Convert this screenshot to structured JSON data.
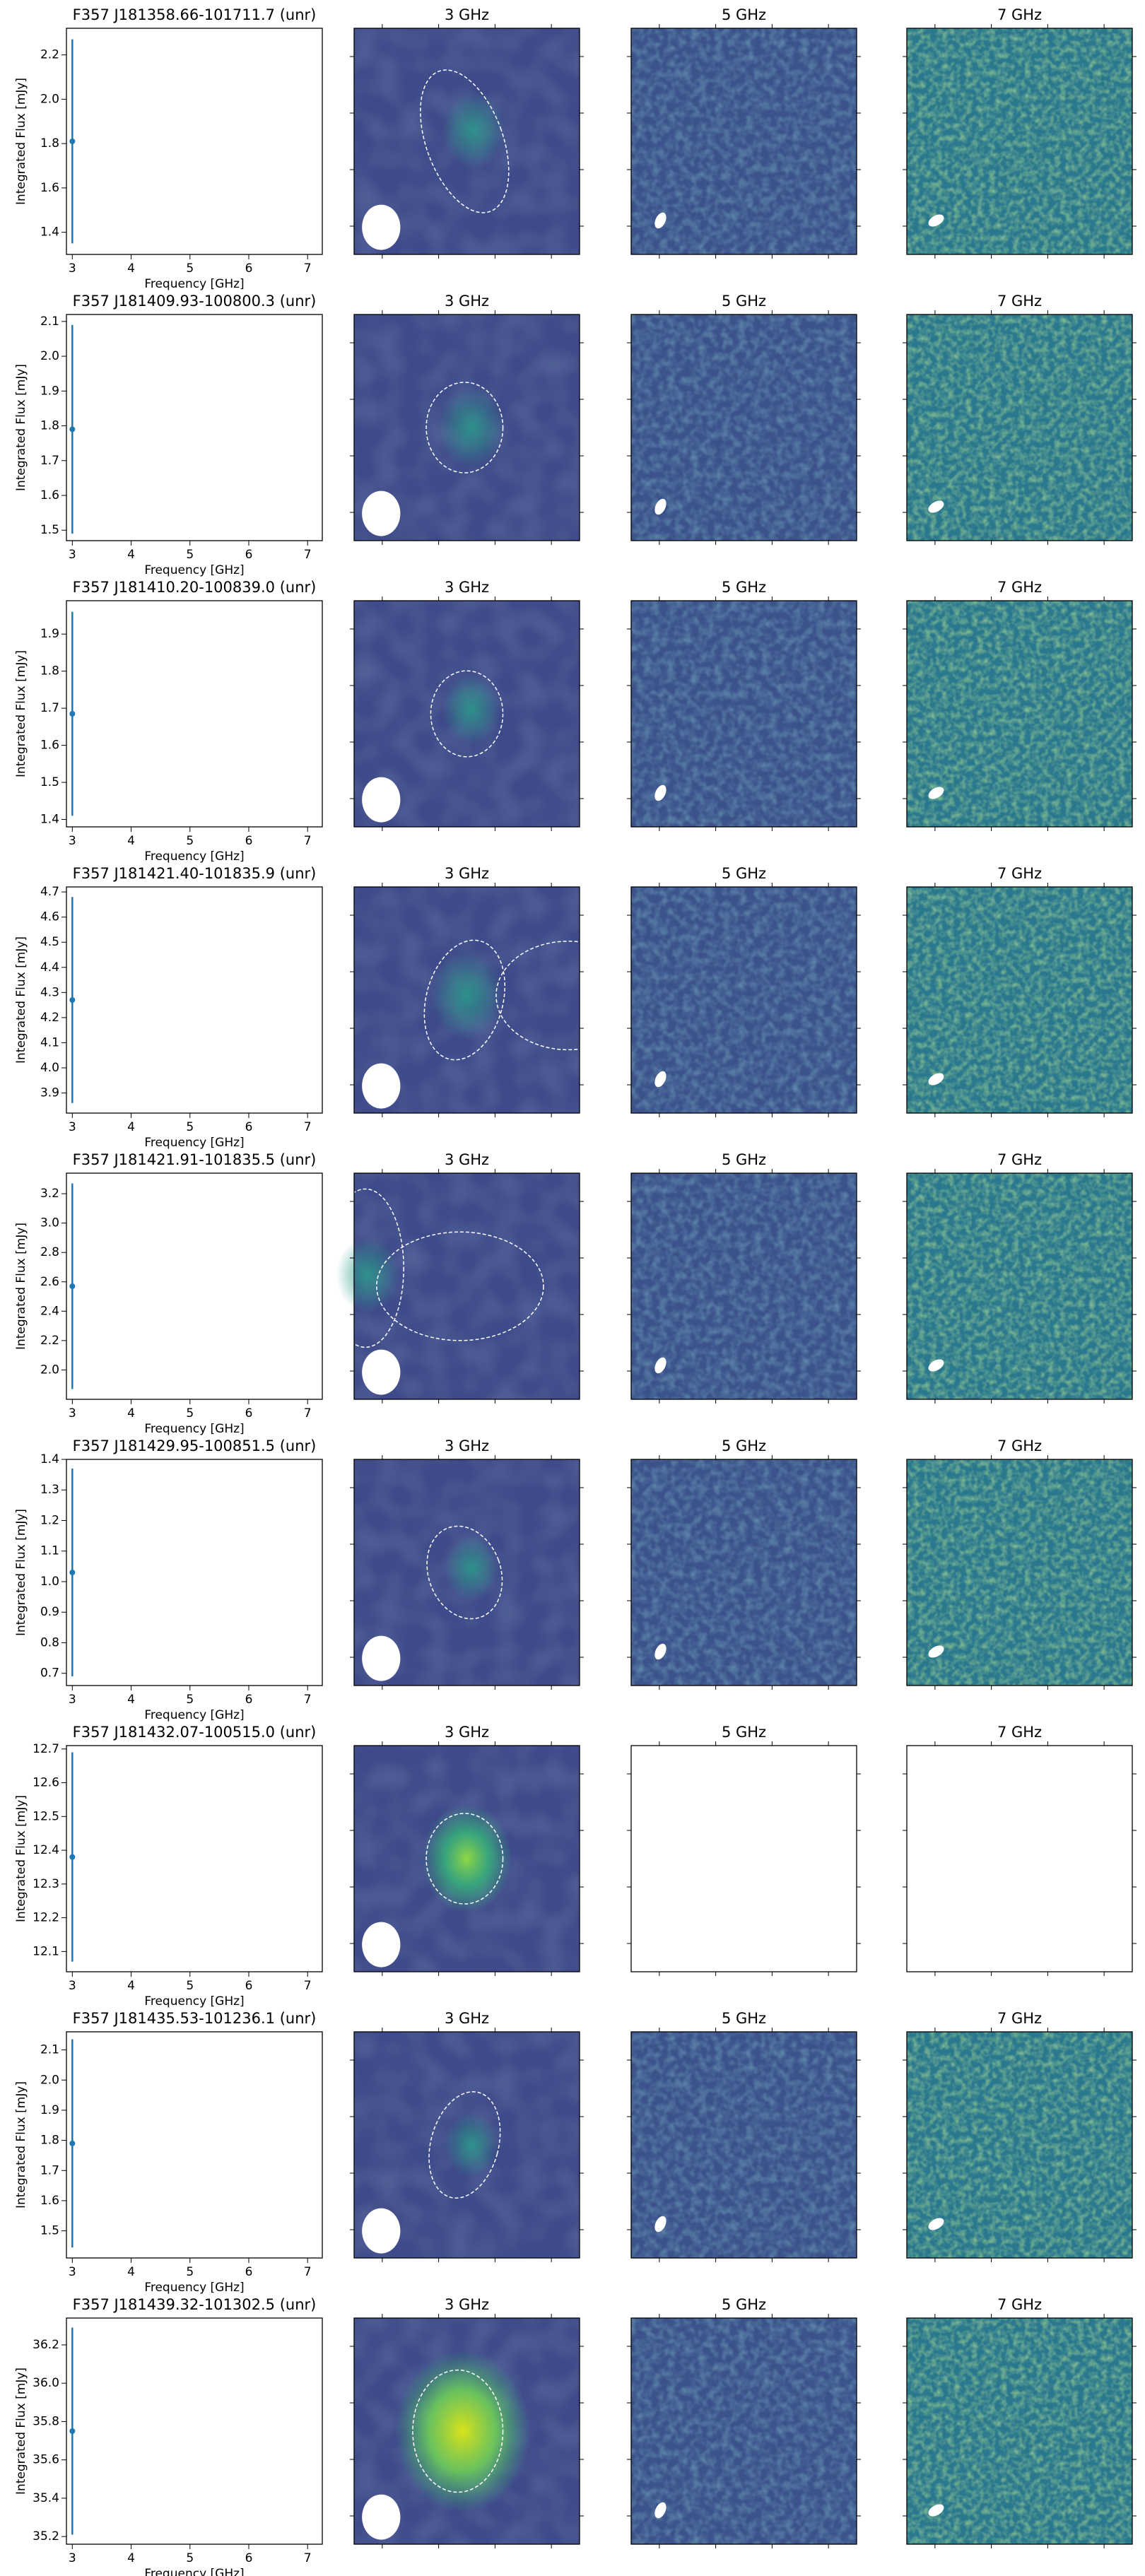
{
  "chart_data": [
    {
      "type": "errorbar",
      "title": "F357 J181358.66-101711.7 (unr)",
      "x": [
        3
      ],
      "values": [
        1.81
      ],
      "errors": [
        0.46
      ],
      "color": "#1f77b4",
      "xlim": [
        2.9,
        7.25
      ],
      "xticks": [
        3,
        4,
        5,
        6,
        7
      ],
      "ylim": [
        1.3,
        2.32
      ],
      "yticks": [
        1.4,
        1.6,
        1.8,
        {
          "value": 2,
          "label": "2.0"
        },
        2.2
      ],
      "xlabel": "Frequency [GHz]",
      "ylabel": "Integrated Flux [mJy]",
      "image_titles": [
        "3 GHz",
        "5 GHz",
        "7 GHz"
      ]
    },
    {
      "type": "errorbar",
      "title": "F357 J181409.93-100800.3 (unr)",
      "x": [
        3
      ],
      "values": [
        1.79
      ],
      "errors": [
        0.3
      ],
      "color": "#1f77b4",
      "xlim": [
        2.9,
        7.25
      ],
      "xticks": [
        3,
        4,
        5,
        6,
        7
      ],
      "ylim": [
        1.47,
        2.12
      ],
      "yticks": [
        1.5,
        1.6,
        1.7,
        1.8,
        1.9,
        {
          "value": 2,
          "label": "2.0"
        },
        2.1
      ],
      "xlabel": "Frequency [GHz]",
      "ylabel": "Integrated Flux [mJy]",
      "image_titles": [
        "3 GHz",
        "5 GHz",
        "7 GHz"
      ]
    },
    {
      "type": "errorbar",
      "title": "F357 J181410.20-100839.0 (unr)",
      "x": [
        3
      ],
      "values": [
        1.685
      ],
      "errors": [
        0.275
      ],
      "color": "#1f77b4",
      "xlim": [
        2.9,
        7.25
      ],
      "xticks": [
        3,
        4,
        5,
        6,
        7
      ],
      "ylim": [
        1.38,
        1.99
      ],
      "yticks": [
        1.4,
        1.5,
        1.6,
        1.7,
        1.8,
        1.9
      ],
      "xlabel": "Frequency [GHz]",
      "ylabel": "Integrated Flux [mJy]",
      "image_titles": [
        "3 GHz",
        "5 GHz",
        "7 GHz"
      ]
    },
    {
      "type": "errorbar",
      "title": "F357 J181421.40-101835.9 (unr)",
      "x": [
        3
      ],
      "values": [
        4.27
      ],
      "errors": [
        0.41
      ],
      "color": "#1f77b4",
      "xlim": [
        2.9,
        7.25
      ],
      "xticks": [
        3,
        4,
        5,
        6,
        7
      ],
      "ylim": [
        3.82,
        4.72
      ],
      "yticks": [
        3.9,
        {
          "value": 4,
          "label": "4.0"
        },
        4.1,
        4.2,
        4.3,
        4.4,
        4.5,
        4.6,
        4.7
      ],
      "xlabel": "Frequency [GHz]",
      "ylabel": "Integrated Flux [mJy]",
      "image_titles": [
        "3 GHz",
        "5 GHz",
        "7 GHz"
      ]
    },
    {
      "type": "errorbar",
      "title": "F357 J181421.91-101835.5 (unr)",
      "x": [
        3
      ],
      "values": [
        2.57
      ],
      "errors": [
        0.7
      ],
      "color": "#1f77b4",
      "xlim": [
        2.9,
        7.25
      ],
      "xticks": [
        3,
        4,
        5,
        6,
        7
      ],
      "ylim": [
        1.8,
        3.34
      ],
      "yticks": [
        {
          "value": 2,
          "label": "2.0"
        },
        2.2,
        2.4,
        2.6,
        2.8,
        {
          "value": 3,
          "label": "3.0"
        },
        3.2
      ],
      "xlabel": "Frequency [GHz]",
      "ylabel": "Integrated Flux [mJy]",
      "image_titles": [
        "3 GHz",
        "5 GHz",
        "7 GHz"
      ]
    },
    {
      "type": "errorbar",
      "title": "F357 J181429.95-100851.5 (unr)",
      "x": [
        3
      ],
      "values": [
        1.03
      ],
      "errors": [
        0.34
      ],
      "color": "#1f77b4",
      "xlim": [
        2.9,
        7.25
      ],
      "xticks": [
        3,
        4,
        5,
        6,
        7
      ],
      "ylim": [
        0.66,
        1.4
      ],
      "yticks": [
        0.7,
        0.8,
        0.9,
        {
          "value": 1,
          "label": "1.0"
        },
        1.1,
        1.2,
        1.3,
        1.4
      ],
      "xlabel": "Frequency [GHz]",
      "ylabel": "Integrated Flux [mJy]",
      "image_titles": [
        "3 GHz",
        "5 GHz",
        "7 GHz"
      ]
    },
    {
      "type": "errorbar",
      "title": "F357 J181432.07-100515.0 (unr)",
      "x": [
        3
      ],
      "values": [
        12.38
      ],
      "errors": [
        0.31
      ],
      "color": "#1f77b4",
      "xlim": [
        2.9,
        7.25
      ],
      "xticks": [
        3,
        4,
        5,
        6,
        7
      ],
      "ylim": [
        12.04,
        12.71
      ],
      "yticks": [
        12.1,
        12.2,
        12.3,
        12.4,
        12.5,
        12.6,
        12.7
      ],
      "xlabel": "Frequency [GHz]",
      "ylabel": "Integrated Flux [mJy]",
      "image_titles": [
        "3 GHz",
        "5 GHz",
        "7 GHz"
      ]
    },
    {
      "type": "errorbar",
      "title": "F357 J181435.53-101236.1 (unr)",
      "x": [
        3
      ],
      "values": [
        1.79
      ],
      "errors": [
        0.345
      ],
      "color": "#1f77b4",
      "xlim": [
        2.9,
        7.25
      ],
      "xticks": [
        3,
        4,
        5,
        6,
        7
      ],
      "ylim": [
        1.41,
        2.16
      ],
      "yticks": [
        1.5,
        1.6,
        1.7,
        1.8,
        1.9,
        {
          "value": 2,
          "label": "2.0"
        },
        2.1
      ],
      "xlabel": "Frequency [GHz]",
      "ylabel": "Integrated Flux [mJy]",
      "image_titles": [
        "3 GHz",
        "5 GHz",
        "7 GHz"
      ]
    },
    {
      "type": "errorbar",
      "title": "F357 J181439.32-101302.5 (unr)",
      "x": [
        3
      ],
      "values": [
        35.75
      ],
      "errors": [
        0.54
      ],
      "color": "#1f77b4",
      "xlim": [
        2.9,
        7.25
      ],
      "xticks": [
        3,
        4,
        5,
        6,
        7
      ],
      "ylim": [
        35.16,
        36.34
      ],
      "yticks": [
        35.2,
        35.4,
        35.6,
        35.8,
        {
          "value": 36,
          "label": "36.0"
        },
        36.2
      ],
      "xlabel": "Frequency [GHz]",
      "ylabel": "Integrated Flux [mJy]",
      "image_titles": [
        "3 GHz",
        "5 GHz",
        "7 GHz"
      ]
    }
  ]
}
